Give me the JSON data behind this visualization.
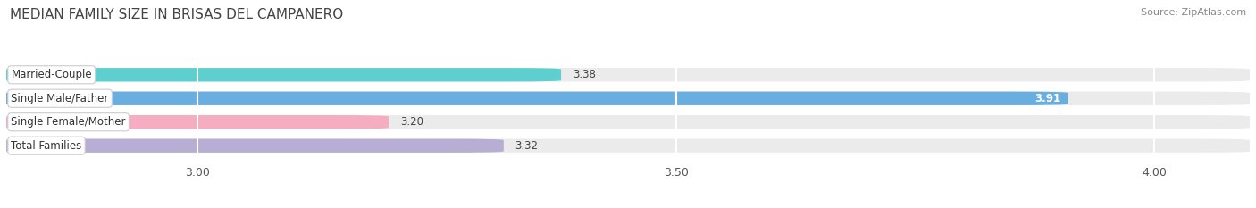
{
  "title": "MEDIAN FAMILY SIZE IN BRISAS DEL CAMPANERO",
  "source": "Source: ZipAtlas.com",
  "categories": [
    "Married-Couple",
    "Single Male/Father",
    "Single Female/Mother",
    "Total Families"
  ],
  "values": [
    3.38,
    3.91,
    3.2,
    3.32
  ],
  "bar_colors": [
    "#5ecfcf",
    "#6aaee0",
    "#f5adc0",
    "#b8aed4"
  ],
  "bar_bg_color": "#ebebeb",
  "value_label_inside": [
    false,
    true,
    false,
    false
  ],
  "xlim": [
    2.8,
    4.1
  ],
  "xticks": [
    3.0,
    3.5,
    4.0
  ],
  "bar_height": 0.58,
  "figsize": [
    14.06,
    2.33
  ],
  "dpi": 100,
  "bg_color": "#ffffff"
}
